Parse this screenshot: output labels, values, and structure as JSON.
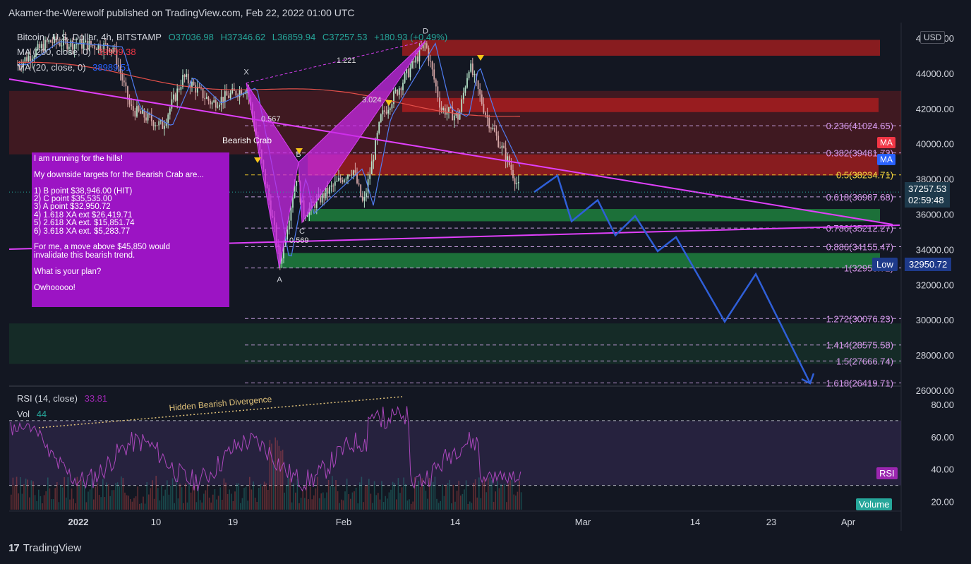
{
  "publisher": "Akamer-the-Werewolf published on TradingView.com, Feb 22, 2022 01:00 UTC",
  "brand": "TradingView",
  "brand_logo": "17",
  "header": {
    "symbol": "Bitcoin / U.S. Dollar, 4h, BITSTAMP",
    "o": "O37036.98",
    "h": "H37346.62",
    "l": "L36859.94",
    "c": "C37257.53",
    "change": "+180.93 (+0.49%)"
  },
  "ma200": {
    "label": "MA (200, close, 0)",
    "value": "39909.38",
    "color": "#f23645"
  },
  "ma20": {
    "label": "MA (20, close, 0)",
    "value": "38989.51",
    "color": "#2962ff"
  },
  "rsi_legend": {
    "label": "RSI (14, close)",
    "value": "33.81"
  },
  "vol_legend": {
    "label": "Vol",
    "value": "44"
  },
  "currency": "USD",
  "price_tag": {
    "value": "37257.53",
    "countdown": "02:59:48"
  },
  "low_tag": {
    "label": "Low",
    "value": "32950.72"
  },
  "ma_tag_1": "MA",
  "ma_tag_2": "MA",
  "rsi_tag": "RSI",
  "volume_tag": "Volume",
  "note_lines": [
    "I am running for the hills!",
    "",
    "My downside targets for the Bearish Crab are...",
    "",
    "1) B point $38,946.00 (HIT)",
    "2) C point $35,535.00",
    "3) A point $32,950.72",
    "4) 1.618 XA ext $26,419.71",
    "5) 2.618 XA ext. $15,851.74",
    "6) 3.618 XA ext. $5,283.77",
    "",
    "For me, a move above $45,850 would",
    "invalidate this bearish trend.",
    "",
    "What is your plan?",
    "",
    "Owhooooo!"
  ],
  "chart_data": {
    "type": "candlestick",
    "x_ticks": [
      "2022",
      "10",
      "19",
      "Feb",
      "14",
      "Mar",
      "14",
      "23",
      "Apr"
    ],
    "y_ticks": [
      "46000.00",
      "44000.00",
      "42000.00",
      "40000.00",
      "38000.00",
      "36000.00",
      "34000.00",
      "32000.00",
      "30000.00",
      "28000.00",
      "26000.00"
    ],
    "y_tick_values": [
      46000,
      44000,
      42000,
      40000,
      38000,
      36000,
      34000,
      32000,
      30000,
      28000,
      26000
    ],
    "ylim": [
      26000,
      46000
    ],
    "pattern_name": "Bearish Crab",
    "pattern_points": [
      {
        "label": "X",
        "price": 43450
      },
      {
        "label": "A",
        "price": 32950.72
      },
      {
        "label": "B",
        "price": 38946
      },
      {
        "label": "C",
        "price": 35535
      },
      {
        "label": "D",
        "price": 45850
      }
    ],
    "pattern_ratios": [
      {
        "label": "0.567"
      },
      {
        "label": "0.569"
      },
      {
        "label": "3.024"
      },
      {
        "label": "1.221"
      }
    ],
    "fib_levels": [
      {
        "label": "0.236(41024.65)",
        "price": 41024.65
      },
      {
        "label": "0.382(39481.73)",
        "price": 39481.73
      },
      {
        "label": "0.5(38234.71)",
        "price": 38234.71
      },
      {
        "label": "0.618(36987.68)",
        "price": 36987.68
      },
      {
        "label": "0.786(35212.27)",
        "price": 35212.27
      },
      {
        "label": "0.886(34155.47)",
        "price": 34155.47
      },
      {
        "label": "1(32950.72)",
        "price": 32950.72
      },
      {
        "label": "1.272(30076.23)",
        "price": 30076.23
      },
      {
        "label": "1.414(28575.58)",
        "price": 28575.58
      },
      {
        "label": "1.5(27666.74)",
        "price": 27666.74
      },
      {
        "label": "1.618(26419.71)",
        "price": 26419.71
      }
    ],
    "zones": [
      {
        "kind": "supply",
        "from": 45900,
        "to": 45000
      },
      {
        "kind": "supply",
        "from": 43000,
        "to": 39400
      },
      {
        "kind": "supply",
        "from": 42600,
        "to": 41800
      },
      {
        "kind": "supply",
        "from": 39400,
        "to": 38200
      },
      {
        "kind": "demand",
        "from": 36300,
        "to": 35600
      },
      {
        "kind": "demand",
        "from": 33800,
        "to": 32950
      },
      {
        "kind": "demand",
        "from": 29800,
        "to": 27500
      }
    ],
    "last_price": 37257.53,
    "projection_path": [
      38200,
      35600,
      36800,
      34800,
      35900,
      33900,
      34700,
      29900,
      32600,
      26400
    ],
    "rsi": {
      "y_ticks": [
        "80.00",
        "60.00",
        "40.00",
        "20.00"
      ],
      "ylim": [
        15,
        90
      ],
      "bands": [
        70,
        30
      ],
      "annotation": "Hidden Bearish Divergence",
      "last": 33.81
    }
  }
}
